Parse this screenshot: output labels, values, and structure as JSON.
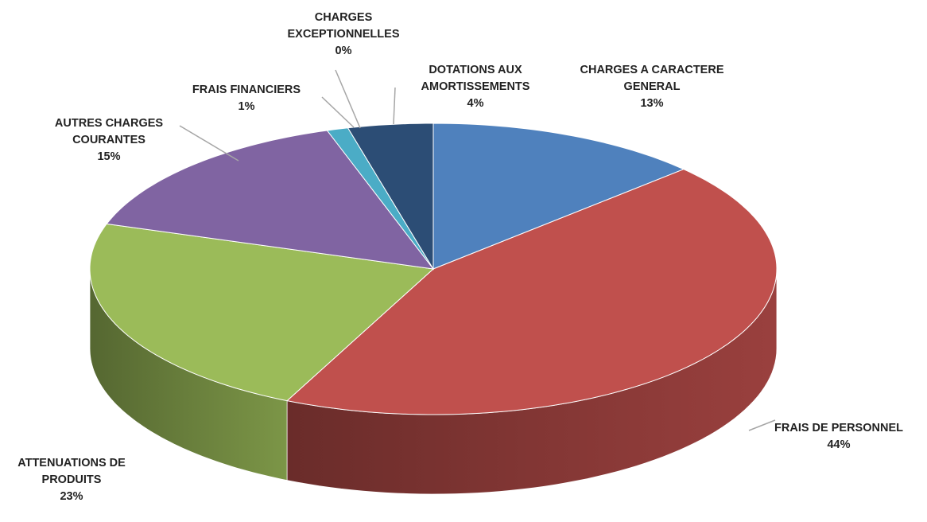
{
  "chart_data": {
    "type": "pie",
    "categories": [
      "CHARGES A CARACTERE GENERAL",
      "FRAIS DE PERSONNEL",
      "ATTENUATIONS DE PRODUITS",
      "AUTRES CHARGES COURANTES",
      "FRAIS FINANCIERS",
      "CHARGES EXCEPTIONNELLES",
      "DOTATIONS AUX AMORTISSEMENTS"
    ],
    "values": [
      13,
      44,
      23,
      15,
      1,
      0,
      4
    ],
    "value_labels": [
      "13%",
      "44%",
      "23%",
      "15%",
      "1%",
      "0%",
      "4%"
    ],
    "colors": [
      "#4f81bd",
      "#c0504d",
      "#9bbb59",
      "#8064a2",
      "#4bacc6",
      "#f79646",
      "#2c4d75"
    ]
  }
}
